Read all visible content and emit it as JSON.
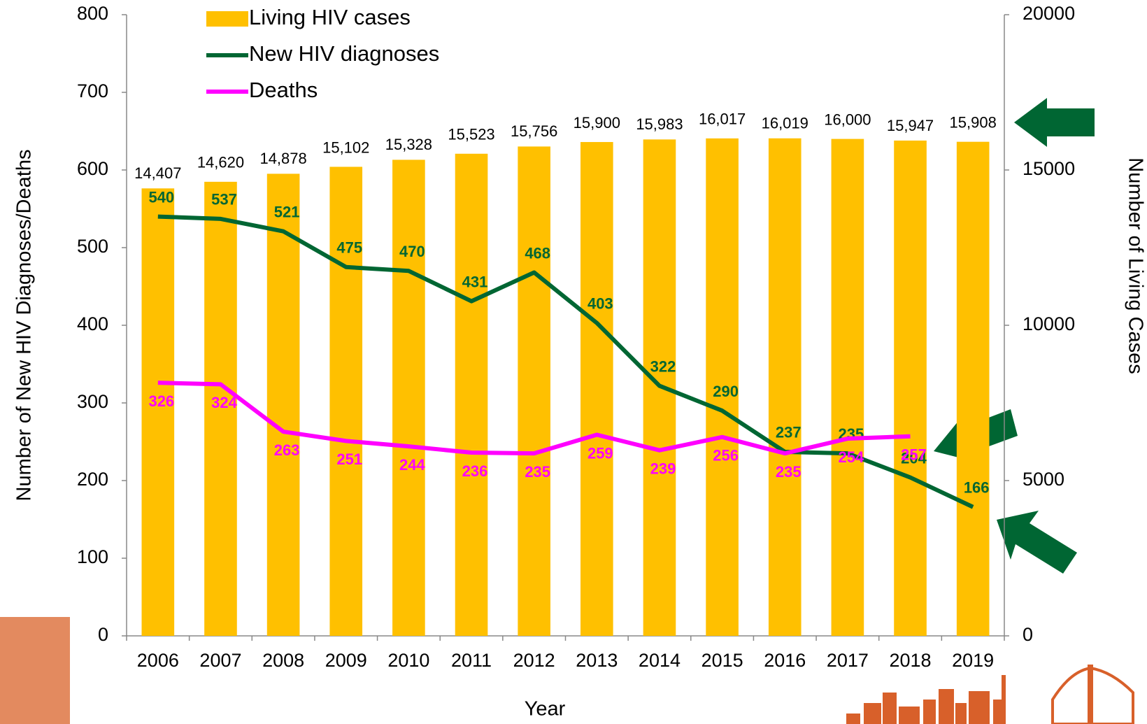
{
  "chart_data": {
    "type": "bar",
    "categories": [
      "2006",
      "2007",
      "2008",
      "2009",
      "2010",
      "2011",
      "2012",
      "2013",
      "2014",
      "2015",
      "2016",
      "2017",
      "2018",
      "2019"
    ],
    "x_label": "Year",
    "y_label": "Number of New HIV Diagnoses/Deaths",
    "y2_label": "Number of Living Cases",
    "ylim": [
      0,
      800
    ],
    "yticks": [
      0,
      100,
      200,
      300,
      400,
      500,
      600,
      700,
      800
    ],
    "y2lim": [
      0,
      20000
    ],
    "y2ticks": [
      0,
      5000,
      10000,
      15000,
      20000
    ],
    "series": [
      {
        "name": "Living HIV cases",
        "type": "bar",
        "axis": "y2",
        "color": "#FFC000",
        "values": [
          14407,
          14620,
          14878,
          15102,
          15328,
          15523,
          15756,
          15900,
          15983,
          16017,
          16019,
          16000,
          15947,
          15908
        ],
        "value_labels": [
          "14,407",
          "14,620",
          "14,878",
          "15,102",
          "15,328",
          "15,523",
          "15,756",
          "15,900",
          "15,983",
          "16,017",
          "16,019",
          "16,000",
          "15,947",
          "15,908"
        ]
      },
      {
        "name": "New HIV diagnoses",
        "type": "line",
        "color": "#006633",
        "values": [
          540,
          537,
          521,
          475,
          470,
          431,
          468,
          403,
          322,
          290,
          237,
          235,
          204,
          166
        ]
      },
      {
        "name": "Deaths",
        "type": "line",
        "color": "#FF00FF",
        "values": [
          326,
          324,
          263,
          251,
          244,
          236,
          235,
          259,
          239,
          256,
          235,
          254,
          257,
          null
        ]
      }
    ]
  }
}
